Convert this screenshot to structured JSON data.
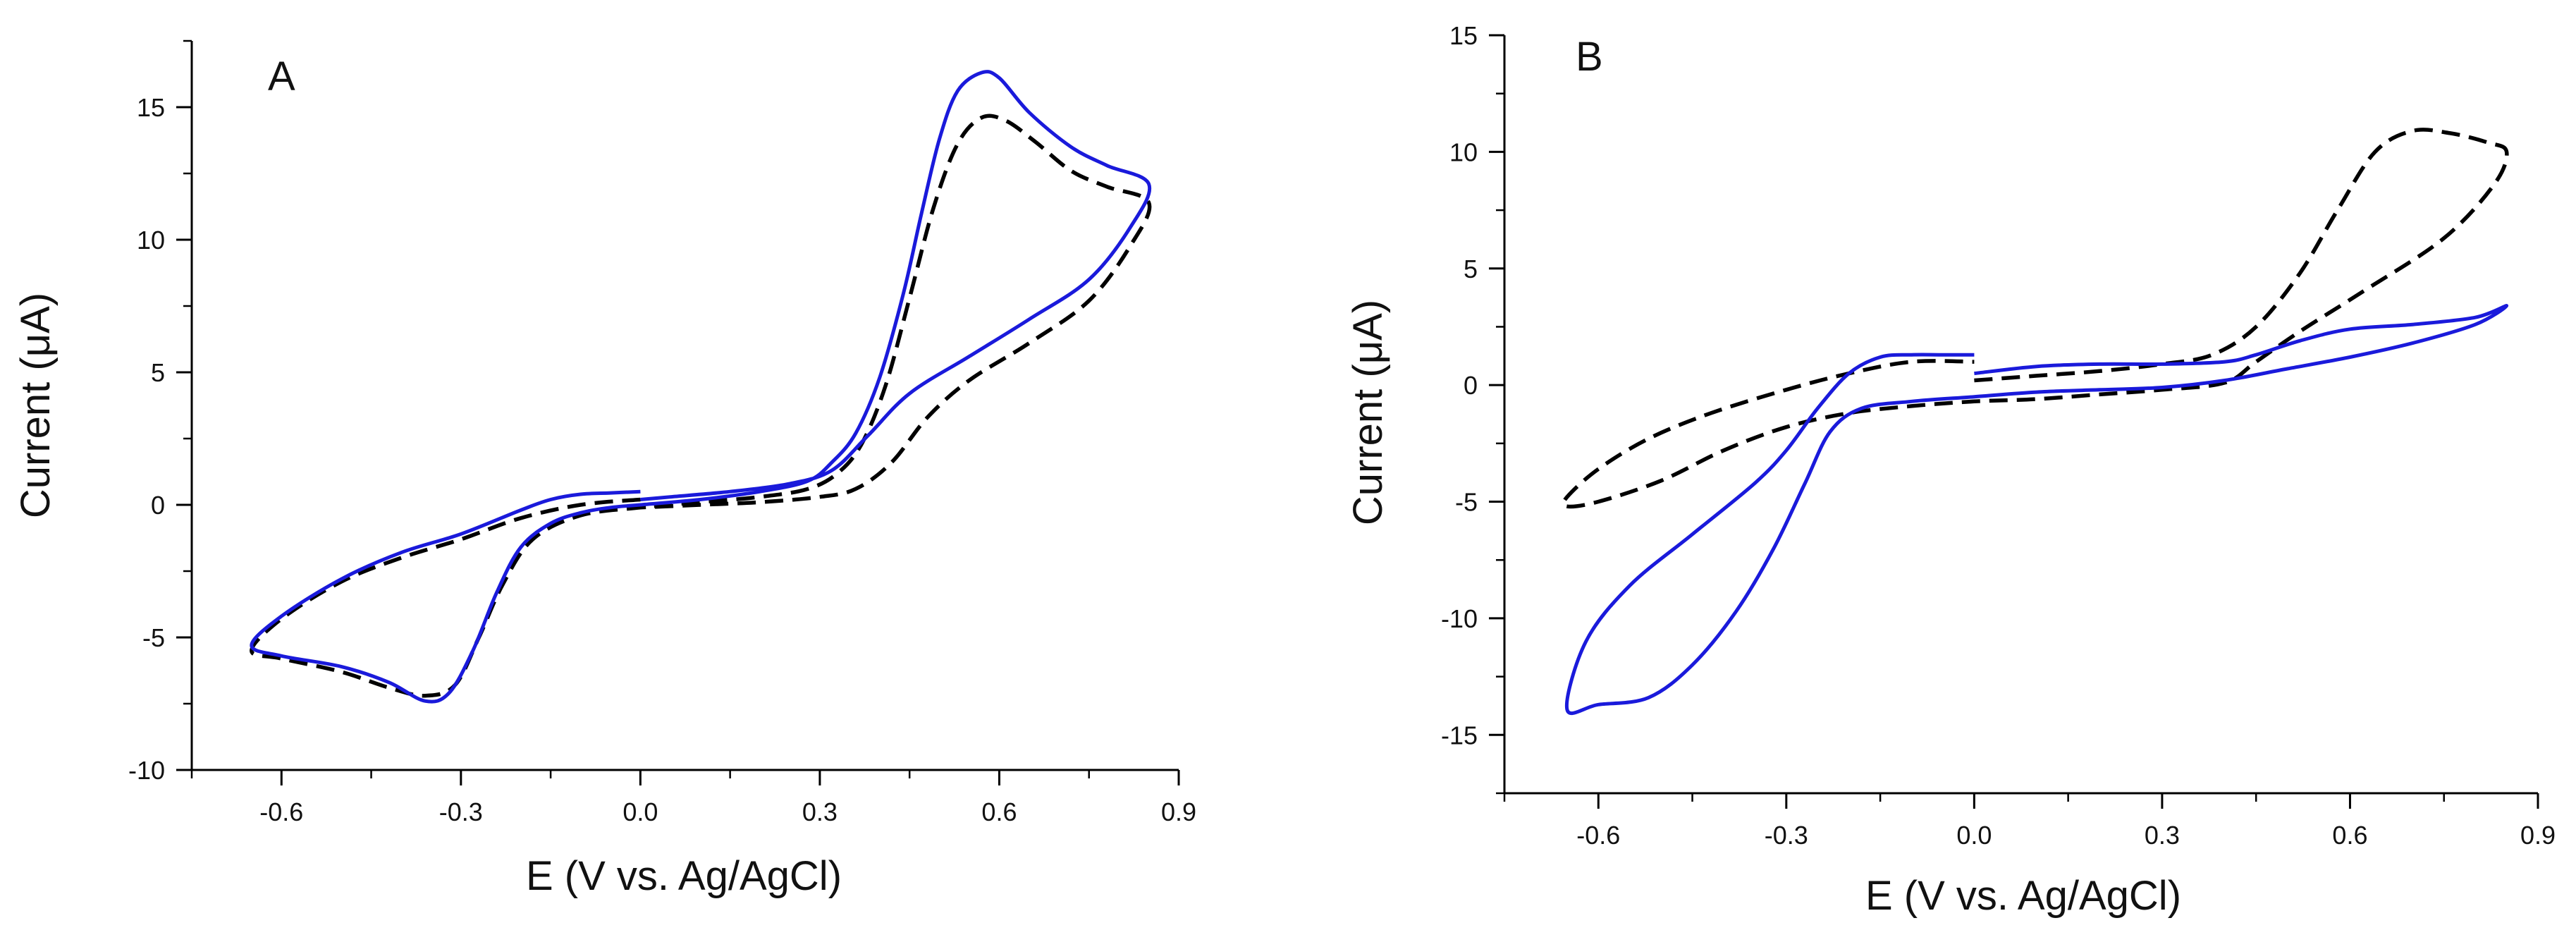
{
  "colors": {
    "blue": "#1a1adb",
    "black": "#000000"
  },
  "chart_data": [
    {
      "type": "line",
      "panel_label": "A",
      "xlabel": "E (V vs. Ag/AgCl)",
      "ylabel": "Current (μA)",
      "xlim": [
        -0.75,
        0.9
      ],
      "ylim": [
        -10,
        17.5
      ],
      "xticks": [
        "-0.6",
        "-0.3",
        "0.0",
        "0.3",
        "0.6",
        "0.9"
      ],
      "yticks": [
        "-10",
        "-5",
        "0",
        "5",
        "10",
        "15"
      ],
      "series": [
        {
          "name": "blue solid",
          "color": "#1a1adb",
          "style": "solid",
          "points": [
            [
              0.0,
              0.5
            ],
            [
              -0.05,
              0.45
            ],
            [
              -0.1,
              0.4
            ],
            [
              -0.15,
              0.2
            ],
            [
              -0.2,
              -0.2
            ],
            [
              -0.3,
              -1.1
            ],
            [
              -0.4,
              -1.8
            ],
            [
              -0.5,
              -2.8
            ],
            [
              -0.6,
              -4.2
            ],
            [
              -0.65,
              -5.3
            ],
            [
              -0.6,
              -5.7
            ],
            [
              -0.5,
              -6.1
            ],
            [
              -0.42,
              -6.7
            ],
            [
              -0.36,
              -7.4
            ],
            [
              -0.32,
              -7.1
            ],
            [
              -0.28,
              -5.5
            ],
            [
              -0.24,
              -3.3
            ],
            [
              -0.2,
              -1.6
            ],
            [
              -0.15,
              -0.7
            ],
            [
              -0.1,
              -0.3
            ],
            [
              -0.05,
              -0.1
            ],
            [
              0.0,
              0.0
            ],
            [
              0.1,
              0.2
            ],
            [
              0.2,
              0.5
            ],
            [
              0.28,
              0.9
            ],
            [
              0.32,
              1.6
            ],
            [
              0.36,
              2.7
            ],
            [
              0.4,
              4.8
            ],
            [
              0.44,
              8.0
            ],
            [
              0.47,
              11.0
            ],
            [
              0.5,
              13.8
            ],
            [
              0.53,
              15.6
            ],
            [
              0.57,
              16.3
            ],
            [
              0.6,
              16.1
            ],
            [
              0.65,
              14.8
            ],
            [
              0.72,
              13.5
            ],
            [
              0.78,
              12.8
            ],
            [
              0.85,
              12.1
            ],
            [
              0.82,
              10.5
            ],
            [
              0.75,
              8.5
            ],
            [
              0.65,
              7.0
            ],
            [
              0.55,
              5.6
            ],
            [
              0.45,
              4.2
            ],
            [
              0.38,
              2.6
            ],
            [
              0.32,
              1.3
            ],
            [
              0.25,
              0.8
            ],
            [
              0.15,
              0.5
            ],
            [
              0.05,
              0.3
            ],
            [
              0.0,
              0.2
            ]
          ]
        },
        {
          "name": "black dashed",
          "color": "#000000",
          "style": "dashed",
          "points": [
            [
              0.0,
              0.2
            ],
            [
              -0.1,
              0.0
            ],
            [
              -0.2,
              -0.5
            ],
            [
              -0.3,
              -1.3
            ],
            [
              -0.4,
              -2.0
            ],
            [
              -0.5,
              -2.9
            ],
            [
              -0.6,
              -4.3
            ],
            [
              -0.65,
              -5.5
            ],
            [
              -0.6,
              -5.8
            ],
            [
              -0.5,
              -6.3
            ],
            [
              -0.42,
              -6.9
            ],
            [
              -0.36,
              -7.2
            ],
            [
              -0.31,
              -6.8
            ],
            [
              -0.27,
              -5.0
            ],
            [
              -0.23,
              -3.0
            ],
            [
              -0.18,
              -1.3
            ],
            [
              -0.1,
              -0.4
            ],
            [
              0.0,
              -0.1
            ],
            [
              0.1,
              0.1
            ],
            [
              0.2,
              0.3
            ],
            [
              0.28,
              0.6
            ],
            [
              0.33,
              1.2
            ],
            [
              0.37,
              2.3
            ],
            [
              0.41,
              4.5
            ],
            [
              0.45,
              7.8
            ],
            [
              0.49,
              11.2
            ],
            [
              0.53,
              13.6
            ],
            [
              0.57,
              14.6
            ],
            [
              0.61,
              14.5
            ],
            [
              0.66,
              13.7
            ],
            [
              0.72,
              12.6
            ],
            [
              0.78,
              12.0
            ],
            [
              0.85,
              11.4
            ],
            [
              0.82,
              9.8
            ],
            [
              0.75,
              7.7
            ],
            [
              0.65,
              6.1
            ],
            [
              0.55,
              4.7
            ],
            [
              0.48,
              3.3
            ],
            [
              0.42,
              1.6
            ],
            [
              0.36,
              0.6
            ],
            [
              0.3,
              0.3
            ],
            [
              0.2,
              0.1
            ],
            [
              0.1,
              0.0
            ],
            [
              0.0,
              -0.1
            ]
          ]
        }
      ]
    },
    {
      "type": "line",
      "panel_label": "B",
      "xlabel": "E (V vs. Ag/AgCl)",
      "ylabel": "Current (μA)",
      "xlim": [
        -0.75,
        0.9
      ],
      "ylim": [
        -17.5,
        15
      ],
      "xticks": [
        "-0.6",
        "-0.3",
        "0.0",
        "0.3",
        "0.6",
        "0.9"
      ],
      "yticks": [
        "-15",
        "-10",
        "-5",
        "0",
        "5",
        "10",
        "15"
      ],
      "series": [
        {
          "name": "blue solid",
          "color": "#1a1adb",
          "style": "solid",
          "points": [
            [
              0.0,
              1.3
            ],
            [
              -0.05,
              1.3
            ],
            [
              -0.1,
              1.3
            ],
            [
              -0.15,
              1.2
            ],
            [
              -0.2,
              0.5
            ],
            [
              -0.25,
              -1.0
            ],
            [
              -0.3,
              -2.8
            ],
            [
              -0.35,
              -4.2
            ],
            [
              -0.45,
              -6.4
            ],
            [
              -0.55,
              -8.6
            ],
            [
              -0.62,
              -11.0
            ],
            [
              -0.65,
              -13.9
            ],
            [
              -0.6,
              -13.7
            ],
            [
              -0.52,
              -13.4
            ],
            [
              -0.45,
              -12.0
            ],
            [
              -0.38,
              -9.7
            ],
            [
              -0.32,
              -7.0
            ],
            [
              -0.27,
              -4.2
            ],
            [
              -0.23,
              -2.0
            ],
            [
              -0.18,
              -1.0
            ],
            [
              -0.1,
              -0.7
            ],
            [
              0.0,
              -0.5
            ],
            [
              0.1,
              -0.3
            ],
            [
              0.2,
              -0.2
            ],
            [
              0.3,
              -0.1
            ],
            [
              0.4,
              0.2
            ],
            [
              0.5,
              0.7
            ],
            [
              0.6,
              1.2
            ],
            [
              0.7,
              1.8
            ],
            [
              0.8,
              2.6
            ],
            [
              0.85,
              3.4
            ],
            [
              0.8,
              2.9
            ],
            [
              0.7,
              2.6
            ],
            [
              0.6,
              2.4
            ],
            [
              0.52,
              1.9
            ],
            [
              0.45,
              1.3
            ],
            [
              0.4,
              1.0
            ],
            [
              0.3,
              0.9
            ],
            [
              0.2,
              0.9
            ],
            [
              0.1,
              0.8
            ],
            [
              0.0,
              0.5
            ]
          ]
        },
        {
          "name": "black dashed",
          "color": "#000000",
          "style": "dashed",
          "points": [
            [
              0.0,
              0.2
            ],
            [
              0.1,
              0.4
            ],
            [
              0.2,
              0.6
            ],
            [
              0.3,
              0.9
            ],
            [
              0.38,
              1.3
            ],
            [
              0.45,
              2.5
            ],
            [
              0.52,
              4.8
            ],
            [
              0.58,
              7.5
            ],
            [
              0.64,
              10.0
            ],
            [
              0.7,
              10.9
            ],
            [
              0.76,
              10.8
            ],
            [
              0.82,
              10.4
            ],
            [
              0.85,
              10.0
            ],
            [
              0.83,
              8.6
            ],
            [
              0.75,
              6.3
            ],
            [
              0.62,
              4.0
            ],
            [
              0.52,
              2.3
            ],
            [
              0.45,
              1.0
            ],
            [
              0.4,
              0.1
            ],
            [
              0.3,
              -0.2
            ],
            [
              0.2,
              -0.4
            ],
            [
              0.1,
              -0.6
            ],
            [
              0.0,
              -0.7
            ],
            [
              -0.1,
              -0.9
            ],
            [
              -0.2,
              -1.2
            ],
            [
              -0.3,
              -1.8
            ],
            [
              -0.4,
              -2.8
            ],
            [
              -0.5,
              -4.1
            ],
            [
              -0.6,
              -5.0
            ],
            [
              -0.65,
              -5.2
            ],
            [
              -0.65,
              -4.8
            ],
            [
              -0.6,
              -3.6
            ],
            [
              -0.52,
              -2.3
            ],
            [
              -0.42,
              -1.2
            ],
            [
              -0.3,
              -0.2
            ],
            [
              -0.2,
              0.5
            ],
            [
              -0.1,
              1.0
            ],
            [
              0.0,
              1.0
            ]
          ]
        }
      ]
    }
  ]
}
